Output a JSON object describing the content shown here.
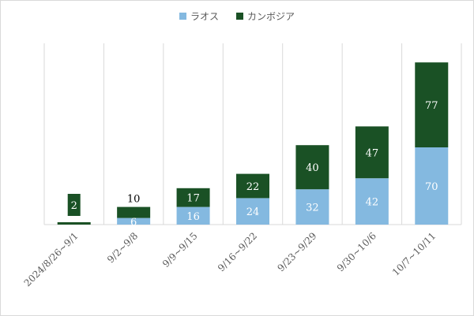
{
  "chart_data": {
    "type": "bar",
    "stacked": true,
    "categories": [
      "2024/8/26~9/1",
      "9/2~9/8",
      "9/9~9/15",
      "9/16~9/22",
      "9/23~9/29",
      "9/30~10/6",
      "10/7~10/11"
    ],
    "series": [
      {
        "name": "ラオス",
        "color": "#84b9e0",
        "values": [
          0,
          6,
          16,
          24,
          32,
          42,
          70
        ]
      },
      {
        "name": "カンボジア",
        "color": "#1a5125",
        "values": [
          2,
          10,
          17,
          22,
          40,
          47,
          77
        ]
      }
    ],
    "data_labels": {
      "ラオス": [
        "",
        "6",
        "16",
        "24",
        "32",
        "42",
        "70"
      ],
      "カンボジア": [
        "2",
        "10",
        "17",
        "22",
        "40",
        "47",
        "77"
      ]
    },
    "ylim": [
      0,
      155
    ],
    "grid": "vertical",
    "legend": "top"
  }
}
